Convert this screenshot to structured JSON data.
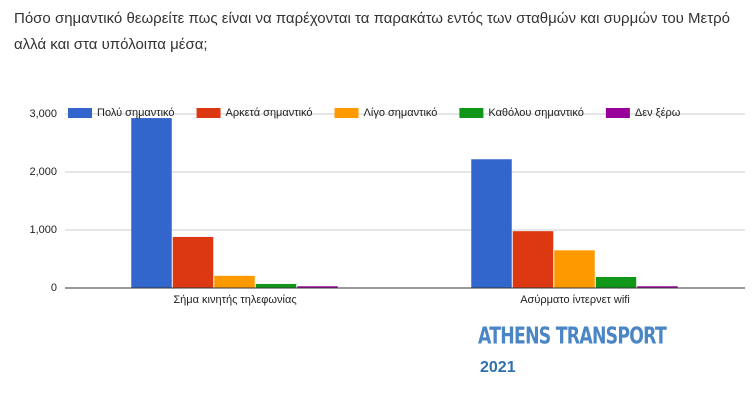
{
  "chart_data": {
    "type": "bar",
    "title": "Πόσο σημαντικό θεωρείτε πως είναι να παρέχονται τα παρακάτω εντός των σταθμών και συρμών του Μετρό αλλά και στα υπόλοιπα μέσα;",
    "categories": [
      "Σήμα κινητής τηλεφωνίας",
      "Ασύρματο ίντερνετ wifi"
    ],
    "series": [
      {
        "name": "Πολύ σημαντικό",
        "color": "#3366cc",
        "values": [
          2930,
          2220
        ]
      },
      {
        "name": "Αρκετά σημαντικό",
        "color": "#dc3912",
        "values": [
          880,
          980
        ]
      },
      {
        "name": "Λίγο σημαντικό",
        "color": "#ff9900",
        "values": [
          210,
          650
        ]
      },
      {
        "name": "Καθόλου σημαντικό",
        "color": "#109618",
        "values": [
          70,
          190
        ]
      },
      {
        "name": "Δεν ξέρω",
        "color": "#990099",
        "values": [
          30,
          30
        ]
      }
    ],
    "ylim": [
      0,
      3000
    ],
    "yticks": [
      0,
      {
        "value": 1000,
        "label": "1,000"
      },
      {
        "value": 2000,
        "label": "2,000"
      },
      {
        "value": 3000,
        "label": "3,000"
      }
    ],
    "grid": true,
    "legend": "top",
    "watermark": "ATHENS TRANSPORT",
    "watermark_year": "2021"
  }
}
